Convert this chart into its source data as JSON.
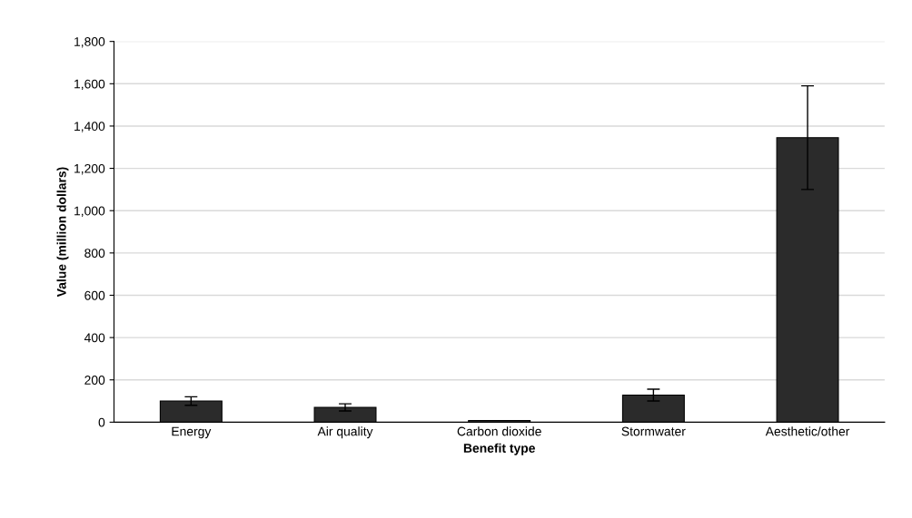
{
  "chart_data": {
    "type": "bar",
    "xlabel": "Benefit type",
    "ylabel": "Value (million dollars)",
    "categories": [
      "Energy",
      "Air quality",
      "Carbon dioxide",
      "Stormwater",
      "Aesthetic/other"
    ],
    "values": [
      100,
      70,
      8,
      128,
      1345
    ],
    "errors": [
      20,
      17,
      null,
      28,
      [
        1100,
        1590
      ]
    ],
    "color": "#2b2b2b",
    "ylim": [
      0,
      1800
    ],
    "yticks": [
      0,
      {
        "value": 200,
        "label": "200"
      },
      {
        "value": 400,
        "label": "400"
      },
      {
        "value": 600,
        "label": "600"
      },
      {
        "value": 800,
        "label": "800"
      },
      {
        "value": 1000,
        "label": "1,000"
      },
      {
        "value": 1200,
        "label": "1,200"
      },
      {
        "value": 1400,
        "label": "1,400"
      },
      {
        "value": 1600,
        "label": "1,600"
      },
      {
        "value": 1800,
        "label": "1,800"
      }
    ],
    "grid": "y"
  }
}
